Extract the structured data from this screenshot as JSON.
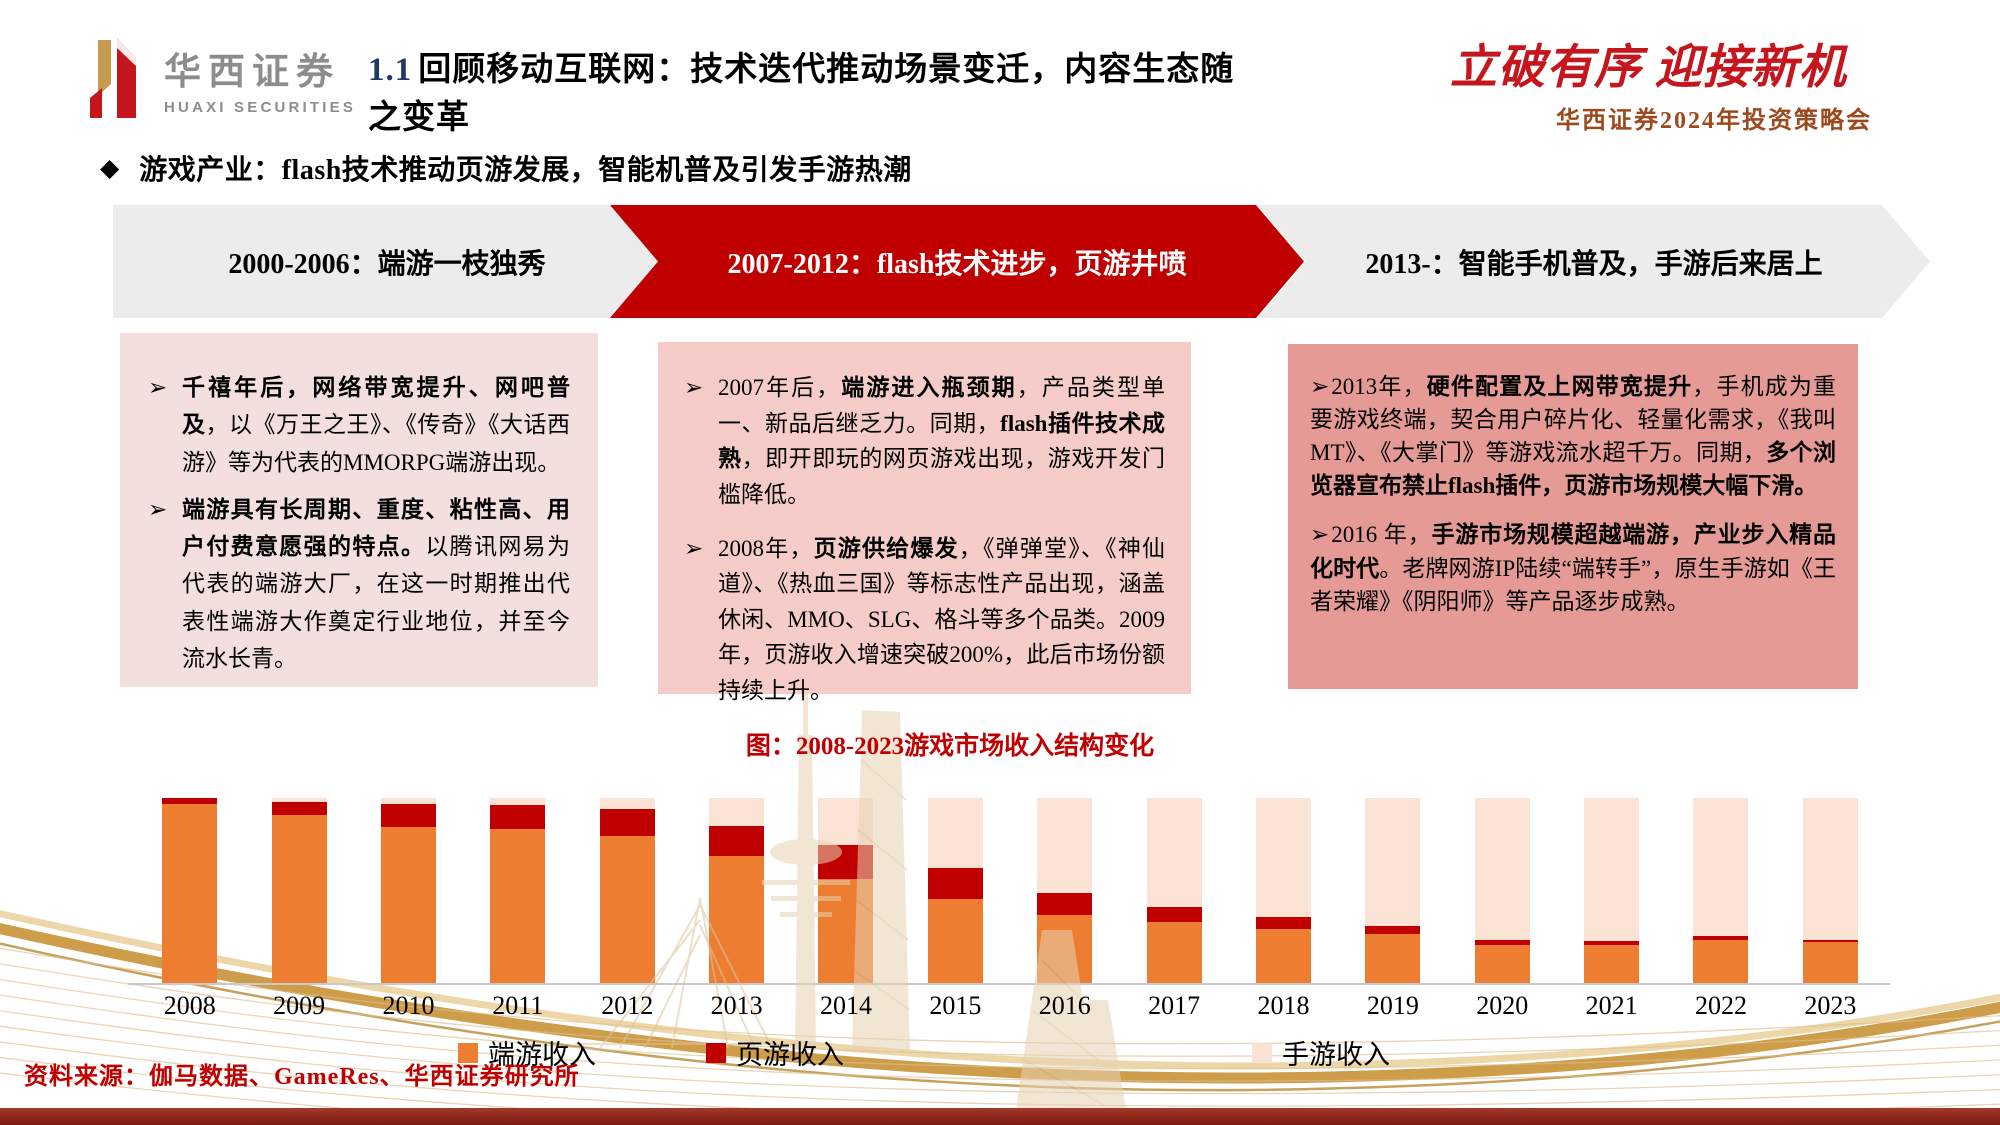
{
  "header": {
    "logo_cn": "华西证券",
    "logo_en": "HUAXI SECURITIES",
    "title_num": "1.1",
    "title_rest": "回顾移动互联网：技术迭代推动场景变迁，内容生态随之变革",
    "slogan": "立破有序 迎接新机",
    "conference": "华西证券2024年投资策略会"
  },
  "bullet": {
    "marker": "◆",
    "text": "游戏产业：flash技术推动页游发展，智能机普及引发手游热潮"
  },
  "timeline": [
    {
      "label": "2000-2006：端游一枝独秀"
    },
    {
      "label": "2007-2012：flash技术进步，页游井喷"
    },
    {
      "label": "2013-：智能手机普及，手游后来居上"
    }
  ],
  "boxes": [
    {
      "marker": "➢",
      "paragraphs": [
        [
          {
            "b": 1,
            "t": "千禧年后，网络带宽提升、网吧普及"
          },
          {
            "t": "，以《万王之王》、《传奇》《大话西游》等为代表的MMORPG端游出现。"
          }
        ],
        [
          {
            "b": 1,
            "t": "端游具有长周期、重度、粘性高、用户付费意愿强的特点。"
          },
          {
            "t": "以腾讯网易为代表的端游大厂，在这一时期推出代表性端游大作奠定行业地位，并至今流水长青。"
          }
        ]
      ]
    },
    {
      "marker": "➢",
      "paragraphs": [
        [
          {
            "t": "2007年后，"
          },
          {
            "b": 1,
            "t": "端游进入瓶颈期"
          },
          {
            "t": "，产品类型单一、新品后继乏力。同期，"
          },
          {
            "b": 1,
            "t": "flash插件技术成熟"
          },
          {
            "t": "，即开即玩的网页游戏出现，游戏开发门槛降低。"
          }
        ],
        [
          {
            "t": "2008年，"
          },
          {
            "b": 1,
            "t": "页游供给爆发"
          },
          {
            "t": "，《弹弹堂》、《神仙道》、《热血三国》等标志性产品出现，涵盖休闲、MMO、SLG、格斗等多个品类。2009年，页游收入增速突破200%，此后市场份额持续上升。"
          }
        ]
      ]
    },
    {
      "marker": "➢",
      "paragraphs": [
        [
          {
            "t": "2013年，"
          },
          {
            "b": 1,
            "t": "硬件配置及上网带宽提升"
          },
          {
            "t": "，手机成为重要游戏终端，契合用户碎片化、轻量化需求，《我叫 MT》、《大掌门》等游戏流水超千万。同期，"
          },
          {
            "b": 1,
            "t": "多个浏览器宣布禁止flash插件，页游市场规模大幅下滑。"
          }
        ],
        [
          {
            "t": "2016 年，"
          },
          {
            "b": 1,
            "t": "手游市场规模超越端游，产业步入精品化时代"
          },
          {
            "t": "。老牌网游IP陆续“端转手”，原生手游如《王者荣耀》《阴阳师》等产品逐步成熟。"
          }
        ]
      ]
    }
  ],
  "chart_title": "图：2008-2023游戏市场收入结构变化",
  "chart_data": {
    "type": "bar",
    "stacked": true,
    "title": "图：2008-2023游戏市场收入结构变化",
    "xlabel": "",
    "ylabel": "",
    "unit": "share of total game market revenue, % (estimated from 100% stacked bars)",
    "ylim": [
      0,
      100
    ],
    "grid": false,
    "legend_position": "bottom",
    "categories": [
      "2008",
      "2009",
      "2010",
      "2011",
      "2012",
      "2013",
      "2014",
      "2015",
      "2016",
      "2017",
      "2018",
      "2019",
      "2020",
      "2021",
      "2022",
      "2023"
    ],
    "series": [
      {
        "name": "端游收入",
        "color": "#ED7D31",
        "values": [
          96.5,
          91,
          84.5,
          83.5,
          79.5,
          68.5,
          56,
          45.5,
          36.5,
          33,
          29,
          26.5,
          20.5,
          20.5,
          23.5,
          22
        ]
      },
      {
        "name": "页游收入",
        "color": "#C00000",
        "values": [
          3.5,
          7,
          12.5,
          12.5,
          14.5,
          16.5,
          18.5,
          16.5,
          12,
          8,
          6.5,
          4.5,
          2.5,
          2,
          2,
          1.5
        ]
      },
      {
        "name": "手游收入",
        "color": "#FAE3D5",
        "values": [
          0,
          2,
          3,
          4,
          6,
          15,
          25.5,
          38,
          51.5,
          59,
          64.5,
          69,
          77,
          77.5,
          74.5,
          76.5
        ]
      }
    ]
  },
  "legend": [
    {
      "label": "端游收入",
      "color": "#ED7D31"
    },
    {
      "label": "页游收入",
      "color": "#C00000"
    },
    {
      "label": "手游收入",
      "color": "#FAE3D5"
    }
  ],
  "source": "资料来源：伽马数据、GameRes、华西证券研究所",
  "colors": {
    "brand_red": "#C5161D",
    "accent_red": "#C00000",
    "arrow_gray": "#ECECEC",
    "box1_bg": "#F2DFDE",
    "box2_bg": "#F6CCC9",
    "box3_bg": "#E59A96",
    "gold": "#CB9840",
    "footer_red": "#8A2418",
    "conference_brown": "#9C4A1D",
    "title_num_blue": "#1F3864"
  }
}
